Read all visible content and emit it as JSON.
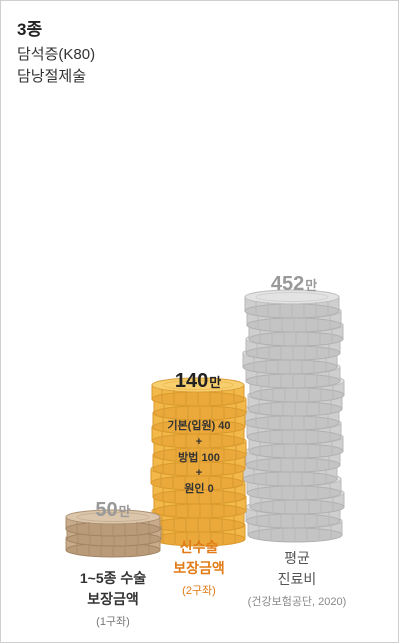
{
  "header": {
    "grade": "3종",
    "disease": "담석증(K80)",
    "surgery": "담낭절제술"
  },
  "stacks": {
    "left": {
      "amount": "50",
      "unit": "만",
      "color": "#c8ab8a"
    },
    "middle": {
      "amount": "140",
      "unit": "만",
      "color": "#f2b84a",
      "breakdown": [
        "기본(입원) 40",
        "+",
        "방법 100",
        "+",
        "원인 0"
      ]
    },
    "right": {
      "amount": "452",
      "unit": "만",
      "color": "#cfcfcf"
    }
  },
  "labels": {
    "left": {
      "line1": "1~5종 수술",
      "line2": "보장금액",
      "sub": "(1구좌)"
    },
    "middle": {
      "line1": "신수술",
      "line2": "보장금액",
      "sub": "(2구좌)"
    },
    "right": {
      "line1": "평균",
      "line2": "진료비",
      "sub": "(건강보험공단, 2020)"
    }
  }
}
